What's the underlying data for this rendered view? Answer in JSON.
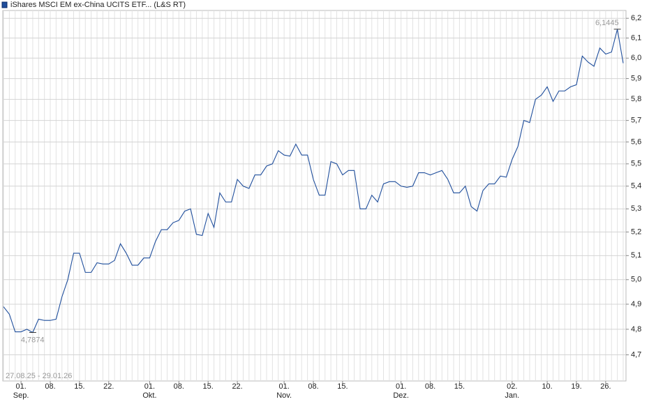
{
  "chart_data": {
    "type": "line",
    "title": "iShares MSCI EM ex-China UCITS ETF... (L&S RT)",
    "subtitle": "27.08.25 - 29.01.26",
    "color": "#1f4e9c",
    "log_scale": true,
    "grid": true,
    "categories": [
      "2025-08-27",
      "2025-08-28",
      "2025-08-29",
      "2025-09-01",
      "2025-09-02",
      "2025-09-03",
      "2025-09-04",
      "2025-09-05",
      "2025-09-08",
      "2025-09-09",
      "2025-09-10",
      "2025-09-11",
      "2025-09-12",
      "2025-09-15",
      "2025-09-16",
      "2025-09-17",
      "2025-09-18",
      "2025-09-19",
      "2025-09-22",
      "2025-09-23",
      "2025-09-24",
      "2025-09-25",
      "2025-09-26",
      "2025-09-29",
      "2025-09-30",
      "2025-10-01",
      "2025-10-02",
      "2025-10-03",
      "2025-10-06",
      "2025-10-07",
      "2025-10-08",
      "2025-10-09",
      "2025-10-10",
      "2025-10-13",
      "2025-10-14",
      "2025-10-15",
      "2025-10-16",
      "2025-10-17",
      "2025-10-20",
      "2025-10-21",
      "2025-10-22",
      "2025-10-23",
      "2025-10-24",
      "2025-10-27",
      "2025-10-28",
      "2025-10-29",
      "2025-10-30",
      "2025-10-31",
      "2025-11-03",
      "2025-11-04",
      "2025-11-05",
      "2025-11-06",
      "2025-11-07",
      "2025-11-10",
      "2025-11-11",
      "2025-11-12",
      "2025-11-13",
      "2025-11-14",
      "2025-11-17",
      "2025-11-18",
      "2025-11-19",
      "2025-11-20",
      "2025-11-21",
      "2025-11-24",
      "2025-11-25",
      "2025-11-26",
      "2025-11-27",
      "2025-11-28",
      "2025-12-01",
      "2025-12-02",
      "2025-12-03",
      "2025-12-04",
      "2025-12-05",
      "2025-12-08",
      "2025-12-09",
      "2025-12-10",
      "2025-12-11",
      "2025-12-12",
      "2025-12-15",
      "2025-12-16",
      "2025-12-17",
      "2025-12-18",
      "2025-12-19",
      "2025-12-22",
      "2025-12-23",
      "2025-12-29",
      "2025-12-30",
      "2026-01-02",
      "2026-01-05",
      "2026-01-06",
      "2026-01-07",
      "2026-01-08",
      "2026-01-09",
      "2026-01-12",
      "2026-01-13",
      "2026-01-14",
      "2026-01-15",
      "2026-01-16",
      "2026-01-19",
      "2026-01-20",
      "2026-01-21",
      "2026-01-22",
      "2026-01-23",
      "2026-01-26",
      "2026-01-27",
      "2026-01-28",
      "2026-01-29"
    ],
    "values": [
      4.89,
      4.86,
      4.79,
      4.79,
      4.8,
      4.7874,
      4.84,
      4.835,
      4.835,
      4.84,
      4.93,
      5.0,
      5.11,
      5.11,
      5.03,
      5.03,
      5.07,
      5.065,
      5.065,
      5.08,
      5.15,
      5.11,
      5.06,
      5.06,
      5.09,
      5.09,
      5.16,
      5.21,
      5.21,
      5.24,
      5.25,
      5.29,
      5.3,
      5.19,
      5.185,
      5.28,
      5.22,
      5.37,
      5.33,
      5.33,
      5.43,
      5.4,
      5.39,
      5.45,
      5.45,
      5.49,
      5.5,
      5.56,
      5.54,
      5.535,
      5.59,
      5.54,
      5.54,
      5.43,
      5.36,
      5.36,
      5.51,
      5.5,
      5.45,
      5.47,
      5.47,
      5.3,
      5.3,
      5.36,
      5.33,
      5.41,
      5.42,
      5.42,
      5.4,
      5.395,
      5.4,
      5.46,
      5.46,
      5.45,
      5.46,
      5.47,
      5.43,
      5.37,
      5.37,
      5.4,
      5.31,
      5.29,
      5.38,
      5.41,
      5.41,
      5.445,
      5.44,
      5.52,
      5.58,
      5.7,
      5.69,
      5.8,
      5.82,
      5.86,
      5.79,
      5.84,
      5.84,
      5.86,
      5.87,
      6.01,
      5.98,
      5.96,
      6.05,
      6.02,
      6.03,
      6.1445,
      5.975
    ],
    "value_labels": [
      null,
      null,
      null,
      null,
      null,
      "4,7874",
      null,
      null,
      null,
      null,
      null,
      null,
      null,
      null,
      null,
      null,
      null,
      null,
      null,
      null,
      null,
      null,
      null,
      null,
      null,
      null,
      null,
      null,
      null,
      null,
      null,
      null,
      null,
      null,
      null,
      null,
      null,
      null,
      null,
      null,
      null,
      null,
      null,
      null,
      null,
      null,
      null,
      null,
      null,
      null,
      null,
      null,
      null,
      null,
      null,
      null,
      null,
      null,
      null,
      null,
      null,
      null,
      null,
      null,
      null,
      null,
      null,
      null,
      null,
      null,
      null,
      null,
      null,
      null,
      null,
      null,
      null,
      null,
      null,
      null,
      null,
      null,
      null,
      null,
      null,
      null,
      null,
      null,
      null,
      null,
      null,
      null,
      null,
      null,
      null,
      null,
      null,
      null,
      null,
      null,
      null,
      null,
      null,
      null,
      null,
      "6,1445",
      null
    ],
    "ylim": [
      4.6,
      6.24
    ],
    "yticks": [
      {
        "value": 4.7,
        "label": "4,7"
      },
      {
        "value": 4.8,
        "label": "4,8"
      },
      {
        "value": 4.9,
        "label": "4,9"
      },
      {
        "value": 5.0,
        "label": "5,0"
      },
      {
        "value": 5.1,
        "label": "5,1"
      },
      {
        "value": 5.2,
        "label": "5,2"
      },
      {
        "value": 5.3,
        "label": "5,3"
      },
      {
        "value": 5.4,
        "label": "5,4"
      },
      {
        "value": 5.5,
        "label": "5,5"
      },
      {
        "value": 5.6,
        "label": "5,6"
      },
      {
        "value": 5.7,
        "label": "5,7"
      },
      {
        "value": 5.8,
        "label": "5,8"
      },
      {
        "value": 5.9,
        "label": "5,9"
      },
      {
        "value": 6.0,
        "label": "6,0"
      },
      {
        "value": 6.1,
        "label": "6,1"
      },
      {
        "value": 6.2,
        "label": "6,2"
      }
    ],
    "xticks": [
      {
        "value": "2025-09-01",
        "label": "01."
      },
      {
        "value": "2025-09-08",
        "label": "08."
      },
      {
        "value": "2025-09-15",
        "label": "15."
      },
      {
        "value": "2025-09-22",
        "label": "22."
      },
      {
        "value": "2025-10-01",
        "label": "01."
      },
      {
        "value": "2025-10-08",
        "label": "08."
      },
      {
        "value": "2025-10-15",
        "label": "15."
      },
      {
        "value": "2025-10-22",
        "label": "22."
      },
      {
        "value": "2025-11-03",
        "label": "01."
      },
      {
        "value": "2025-11-10",
        "label": "08."
      },
      {
        "value": "2025-11-17",
        "label": "15."
      },
      {
        "value": "2025-12-01",
        "label": "01."
      },
      {
        "value": "2025-12-08",
        "label": "08."
      },
      {
        "value": "2025-12-15",
        "label": "15."
      },
      {
        "value": "2026-01-02",
        "label": "02."
      },
      {
        "value": "2026-01-12",
        "label": "10."
      },
      {
        "value": "2026-01-19",
        "label": "19."
      },
      {
        "value": "2026-01-26",
        "label": "26."
      }
    ],
    "month_labels": [
      {
        "value": "2025-09-01",
        "label": "Sep."
      },
      {
        "value": "2025-10-01",
        "label": "Okt."
      },
      {
        "value": "2025-11-03",
        "label": "Nov."
      },
      {
        "value": "2025-12-01",
        "label": "Dez."
      },
      {
        "value": "2026-01-02",
        "label": "Jan."
      }
    ]
  }
}
